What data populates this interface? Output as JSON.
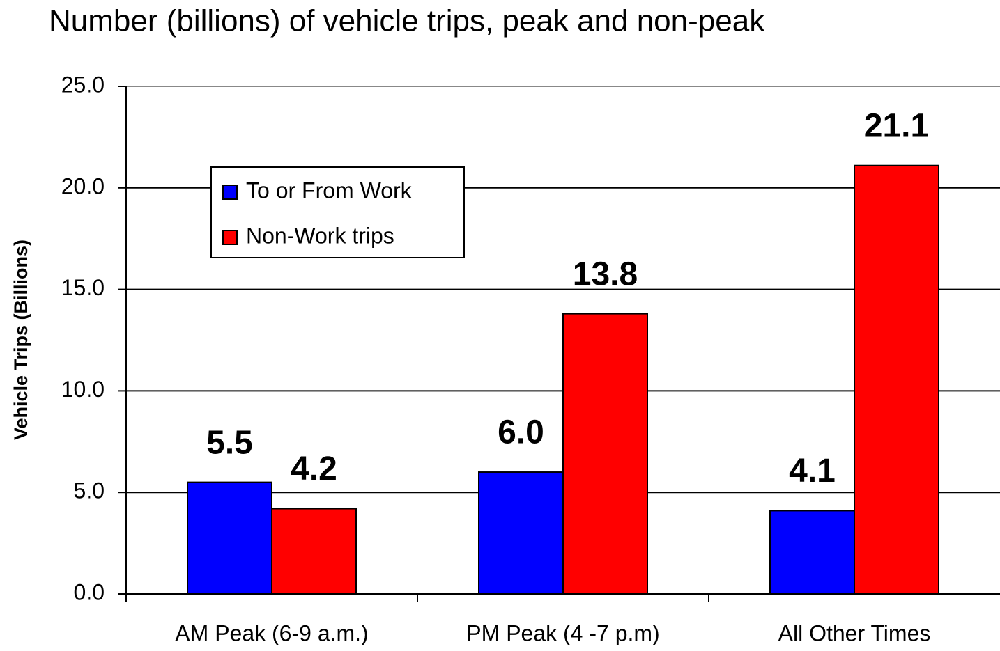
{
  "chart_data": {
    "type": "bar",
    "title": "Number (billions) of vehicle trips, peak and non-peak",
    "y_label": "Vehicle Trips (Billions)",
    "categories": [
      "AM Peak (6-9 a.m.)",
      "PM Peak (4 -7 p.m)",
      "All Other Times"
    ],
    "series": [
      {
        "name": "To or From Work",
        "color": "#0000ff",
        "values": [
          5.5,
          6.0,
          4.1
        ],
        "value_labels": [
          "5.5",
          "6.0",
          "4.1"
        ]
      },
      {
        "name": "Non-Work trips",
        "color": "#ff0000",
        "values": [
          4.2,
          13.8,
          21.1
        ],
        "value_labels": [
          "4.2",
          "13.8",
          "21.1"
        ]
      }
    ],
    "ylim": [
      0,
      25
    ],
    "yticks": [
      {
        "value": 0,
        "label": "0.0"
      },
      {
        "value": 5,
        "label": "5.0"
      },
      {
        "value": 10,
        "label": "10.0"
      },
      {
        "value": 15,
        "label": "15.0"
      },
      {
        "value": 20,
        "label": "20.0"
      },
      {
        "value": 25,
        "label": "25.0"
      }
    ],
    "grid": true,
    "legend": "upper left"
  }
}
